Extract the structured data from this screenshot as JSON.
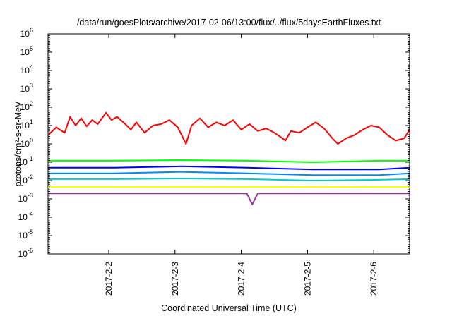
{
  "chart_data": {
    "type": "line",
    "title": "/data/run/goesPlots/archive/2017-02-06/13:00/flux/../flux/5daysEarthFluxes.txt",
    "xlabel": "Coordinated Universal Time (UTC)",
    "ylabel": "protons/cm²-s-sr-MeV",
    "y_scale": "log",
    "ylim": [
      1e-06,
      1000000.0
    ],
    "y_ticks": [
      {
        "value": 1e-06,
        "base": "10",
        "exp": "-6"
      },
      {
        "value": 1e-05,
        "base": "10",
        "exp": "-5"
      },
      {
        "value": 0.0001,
        "base": "10",
        "exp": "-4"
      },
      {
        "value": 0.001,
        "base": "10",
        "exp": "-3"
      },
      {
        "value": 0.01,
        "base": "10",
        "exp": "-2"
      },
      {
        "value": 0.1,
        "base": "10",
        "exp": "-1"
      },
      {
        "value": 1,
        "base": "10",
        "exp": "0"
      },
      {
        "value": 10,
        "base": "10",
        "exp": "1"
      },
      {
        "value": 100,
        "base": "10",
        "exp": "2"
      },
      {
        "value": 1000,
        "base": "10",
        "exp": "3"
      },
      {
        "value": 10000,
        "base": "10",
        "exp": "4"
      },
      {
        "value": 100000,
        "base": "10",
        "exp": "5"
      },
      {
        "value": 1000000,
        "base": "10",
        "exp": "6"
      }
    ],
    "x_start": "2017-02-01 02:00",
    "xlim": [
      "2017-02-01 02:00",
      "2017-02-06 13:00"
    ],
    "x_ticks": [
      {
        "date": "2017-02-02",
        "label": "2017-2-2"
      },
      {
        "date": "2017-02-03",
        "label": "2017-2-3"
      },
      {
        "date": "2017-02-04",
        "label": "2017-2-4"
      },
      {
        "date": "2017-02-05",
        "label": "2017-2-5"
      },
      {
        "date": "2017-02-06",
        "label": "2017-2-6"
      }
    ],
    "grid": false,
    "legend": "none",
    "series": [
      {
        "color": "#ff0000",
        "points": [
          [
            "2017-02-01 02:00",
            3
          ],
          [
            "2017-02-01 05:00",
            8
          ],
          [
            "2017-02-01 08:00",
            4
          ],
          [
            "2017-02-01 10:00",
            30
          ],
          [
            "2017-02-01 12:00",
            10
          ],
          [
            "2017-02-01 14:00",
            25
          ],
          [
            "2017-02-01 16:00",
            9
          ],
          [
            "2017-02-01 18:00",
            20
          ],
          [
            "2017-02-01 20:00",
            12
          ],
          [
            "2017-02-01 23:00",
            50
          ],
          [
            "2017-02-02 01:00",
            20
          ],
          [
            "2017-02-02 03:00",
            30
          ],
          [
            "2017-02-02 06:00",
            12
          ],
          [
            "2017-02-02 08:00",
            6
          ],
          [
            "2017-02-02 10:00",
            15
          ],
          [
            "2017-02-02 13:00",
            4
          ],
          [
            "2017-02-02 16:00",
            10
          ],
          [
            "2017-02-02 19:00",
            12
          ],
          [
            "2017-02-02 22:00",
            20
          ],
          [
            "2017-02-03 01:00",
            8
          ],
          [
            "2017-02-03 04:00",
            1
          ],
          [
            "2017-02-03 06:00",
            10
          ],
          [
            "2017-02-03 09:00",
            25
          ],
          [
            "2017-02-03 12:00",
            8
          ],
          [
            "2017-02-03 15:00",
            15
          ],
          [
            "2017-02-03 18:00",
            10
          ],
          [
            "2017-02-03 21:00",
            20
          ],
          [
            "2017-02-04 00:00",
            6
          ],
          [
            "2017-02-04 03:00",
            12
          ],
          [
            "2017-02-04 06:00",
            5
          ],
          [
            "2017-02-04 09:00",
            7
          ],
          [
            "2017-02-04 12:00",
            4
          ],
          [
            "2017-02-04 15:00",
            2
          ],
          [
            "2017-02-04 16:00",
            1.5
          ],
          [
            "2017-02-04 18:00",
            5
          ],
          [
            "2017-02-04 21:00",
            4
          ],
          [
            "2017-02-05 00:00",
            8
          ],
          [
            "2017-02-05 03:00",
            15
          ],
          [
            "2017-02-05 06:00",
            7
          ],
          [
            "2017-02-05 09:00",
            2
          ],
          [
            "2017-02-05 11:00",
            1
          ],
          [
            "2017-02-05 14:00",
            2
          ],
          [
            "2017-02-05 17:00",
            3
          ],
          [
            "2017-02-05 20:00",
            6
          ],
          [
            "2017-02-05 23:00",
            10
          ],
          [
            "2017-02-06 02:00",
            8
          ],
          [
            "2017-02-06 05:00",
            3
          ],
          [
            "2017-02-06 08:00",
            1.5
          ],
          [
            "2017-02-06 11:00",
            2
          ],
          [
            "2017-02-06 13:00",
            6
          ]
        ]
      },
      {
        "color": "#00ff00",
        "points": [
          [
            "2017-02-01 02:00",
            0.12
          ],
          [
            "2017-02-02 02:00",
            0.12
          ],
          [
            "2017-02-03 02:00",
            0.13
          ],
          [
            "2017-02-04 02:00",
            0.12
          ],
          [
            "2017-02-05 02:00",
            0.1
          ],
          [
            "2017-02-06 02:00",
            0.12
          ],
          [
            "2017-02-06 13:00",
            0.12
          ]
        ]
      },
      {
        "color": "#0000ff",
        "points": [
          [
            "2017-02-01 02:00",
            0.05
          ],
          [
            "2017-02-02 02:00",
            0.05
          ],
          [
            "2017-02-03 02:00",
            0.06
          ],
          [
            "2017-02-04 02:00",
            0.05
          ],
          [
            "2017-02-05 02:00",
            0.04
          ],
          [
            "2017-02-06 02:00",
            0.04
          ],
          [
            "2017-02-06 13:00",
            0.05
          ]
        ]
      },
      {
        "color": "#0088ff",
        "points": [
          [
            "2017-02-01 02:00",
            0.025
          ],
          [
            "2017-02-02 02:00",
            0.025
          ],
          [
            "2017-02-03 02:00",
            0.03
          ],
          [
            "2017-02-04 02:00",
            0.025
          ],
          [
            "2017-02-05 02:00",
            0.02
          ],
          [
            "2017-02-06 02:00",
            0.02
          ],
          [
            "2017-02-06 13:00",
            0.025
          ]
        ]
      },
      {
        "color": "#00cccc",
        "points": [
          [
            "2017-02-01 02:00",
            0.012
          ],
          [
            "2017-02-02 02:00",
            0.012
          ],
          [
            "2017-02-03 02:00",
            0.013
          ],
          [
            "2017-02-04 02:00",
            0.012
          ],
          [
            "2017-02-05 02:00",
            0.01
          ],
          [
            "2017-02-06 02:00",
            0.011
          ],
          [
            "2017-02-06 13:00",
            0.012
          ]
        ]
      },
      {
        "color": "#ffff00",
        "points": [
          [
            "2017-02-01 02:00",
            0.0045
          ],
          [
            "2017-02-02 02:00",
            0.0045
          ],
          [
            "2017-02-03 02:00",
            0.0045
          ],
          [
            "2017-02-04 02:00",
            0.0045
          ],
          [
            "2017-02-05 02:00",
            0.0045
          ],
          [
            "2017-02-06 02:00",
            0.0045
          ],
          [
            "2017-02-06 13:00",
            0.0045
          ]
        ]
      },
      {
        "color": "#993399",
        "points": [
          [
            "2017-02-01 02:00",
            0.002
          ],
          [
            "2017-02-02 02:00",
            0.002
          ],
          [
            "2017-02-03 02:00",
            0.002
          ],
          [
            "2017-02-04 02:00",
            0.002
          ],
          [
            "2017-02-04 04:00",
            0.0005
          ],
          [
            "2017-02-04 06:00",
            0.002
          ],
          [
            "2017-02-05 02:00",
            0.002
          ],
          [
            "2017-02-06 02:00",
            0.002
          ],
          [
            "2017-02-06 13:00",
            0.002
          ]
        ]
      }
    ]
  }
}
